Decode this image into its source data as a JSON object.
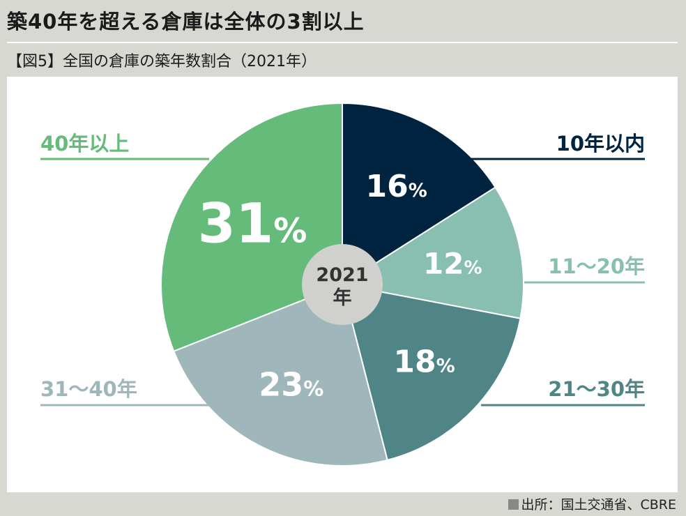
{
  "headline": "築40年を超える倉庫は全体の3割以上",
  "source": "出所：国土交通省、CBRE",
  "chart_data": {
    "type": "pie",
    "title": "【図5】全国の倉庫の築年数割合（2021年）",
    "center_label": [
      "2021",
      "年"
    ],
    "unit": "%",
    "slices": [
      {
        "name": "10年以内",
        "value": 16,
        "color": "#00243f"
      },
      {
        "name": "11〜20年",
        "value": 12,
        "color": "#88bfb0"
      },
      {
        "name": "21〜30年",
        "value": 18,
        "color": "#4f8586"
      },
      {
        "name": "31〜40年",
        "value": 23,
        "color": "#9fb7bb"
      },
      {
        "name": "40年以上",
        "value": 31,
        "color": "#65bb7a"
      }
    ]
  }
}
